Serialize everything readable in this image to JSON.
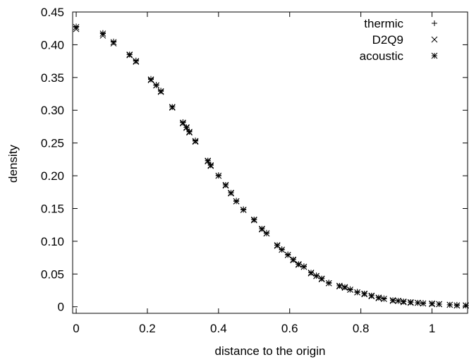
{
  "chart_data": {
    "type": "scatter",
    "title": "",
    "xlabel": "distance to the origin",
    "ylabel": "density",
    "xlim": [
      -0.01,
      1.1
    ],
    "ylim": [
      -0.01,
      0.45
    ],
    "grid": false,
    "legend_position": "top-right",
    "x_ticks": [
      {
        "value": 0,
        "label": "0"
      },
      {
        "value": 0.2,
        "label": "0.2"
      },
      {
        "value": 0.4,
        "label": "0.4"
      },
      {
        "value": 0.6,
        "label": "0.6"
      },
      {
        "value": 0.8,
        "label": "0.8"
      },
      {
        "value": 1,
        "label": "1"
      }
    ],
    "y_ticks": [
      {
        "value": 0,
        "label": "0"
      },
      {
        "value": 0.05,
        "label": "0.05"
      },
      {
        "value": 0.1,
        "label": "0.10"
      },
      {
        "value": 0.15,
        "label": "0.15"
      },
      {
        "value": 0.2,
        "label": "0.20"
      },
      {
        "value": 0.25,
        "label": "0.25"
      },
      {
        "value": 0.3,
        "label": "0.30"
      },
      {
        "value": 0.35,
        "label": "0.35"
      },
      {
        "value": 0.4,
        "label": "0.40"
      },
      {
        "value": 0.45,
        "label": "0.45"
      }
    ],
    "x": [
      0.0,
      0.075,
      0.105,
      0.15,
      0.168,
      0.21,
      0.225,
      0.238,
      0.27,
      0.3,
      0.31,
      0.318,
      0.335,
      0.37,
      0.378,
      0.4,
      0.42,
      0.435,
      0.45,
      0.47,
      0.5,
      0.522,
      0.535,
      0.565,
      0.578,
      0.595,
      0.61,
      0.625,
      0.64,
      0.66,
      0.675,
      0.69,
      0.71,
      0.74,
      0.755,
      0.77,
      0.79,
      0.81,
      0.83,
      0.85,
      0.865,
      0.89,
      0.905,
      0.92,
      0.94,
      0.96,
      0.975,
      1.0,
      1.02,
      1.05,
      1.07,
      1.095
    ],
    "series": [
      {
        "name": "thermic",
        "marker": "plus",
        "values": [
          0.428,
          0.418,
          0.405,
          0.385,
          0.376,
          0.348,
          0.339,
          0.33,
          0.305,
          0.282,
          0.274,
          0.268,
          0.254,
          0.223,
          0.217,
          0.201,
          0.186,
          0.174,
          0.162,
          0.149,
          0.133,
          0.119,
          0.113,
          0.094,
          0.088,
          0.08,
          0.072,
          0.065,
          0.062,
          0.052,
          0.048,
          0.043,
          0.037,
          0.032,
          0.03,
          0.027,
          0.023,
          0.02,
          0.017,
          0.014,
          0.013,
          0.01,
          0.009,
          0.008,
          0.007,
          0.006,
          0.006,
          0.005,
          0.004,
          0.003,
          0.003,
          0.002
        ]
      },
      {
        "name": "D2Q9",
        "marker": "cross",
        "values": [
          0.424,
          0.414,
          0.402,
          0.384,
          0.374,
          0.346,
          0.338,
          0.328,
          0.304,
          0.28,
          0.273,
          0.266,
          0.252,
          0.222,
          0.215,
          0.2,
          0.185,
          0.173,
          0.161,
          0.148,
          0.132,
          0.118,
          0.112,
          0.093,
          0.087,
          0.079,
          0.071,
          0.064,
          0.061,
          0.051,
          0.047,
          0.042,
          0.036,
          0.031,
          0.029,
          0.026,
          0.022,
          0.019,
          0.016,
          0.013,
          0.012,
          0.009,
          0.009,
          0.007,
          0.006,
          0.006,
          0.005,
          0.004,
          0.004,
          0.003,
          0.002,
          0.002
        ]
      },
      {
        "name": "acoustic",
        "marker": "star",
        "values": [
          0.427,
          0.417,
          0.404,
          0.385,
          0.375,
          0.347,
          0.338,
          0.329,
          0.305,
          0.281,
          0.274,
          0.267,
          0.253,
          0.223,
          0.216,
          0.2,
          0.186,
          0.174,
          0.161,
          0.148,
          0.133,
          0.119,
          0.112,
          0.094,
          0.087,
          0.079,
          0.072,
          0.065,
          0.061,
          0.052,
          0.047,
          0.043,
          0.036,
          0.032,
          0.03,
          0.026,
          0.022,
          0.02,
          0.017,
          0.014,
          0.012,
          0.01,
          0.009,
          0.008,
          0.007,
          0.006,
          0.005,
          0.005,
          0.004,
          0.003,
          0.002,
          0.002
        ]
      }
    ]
  }
}
